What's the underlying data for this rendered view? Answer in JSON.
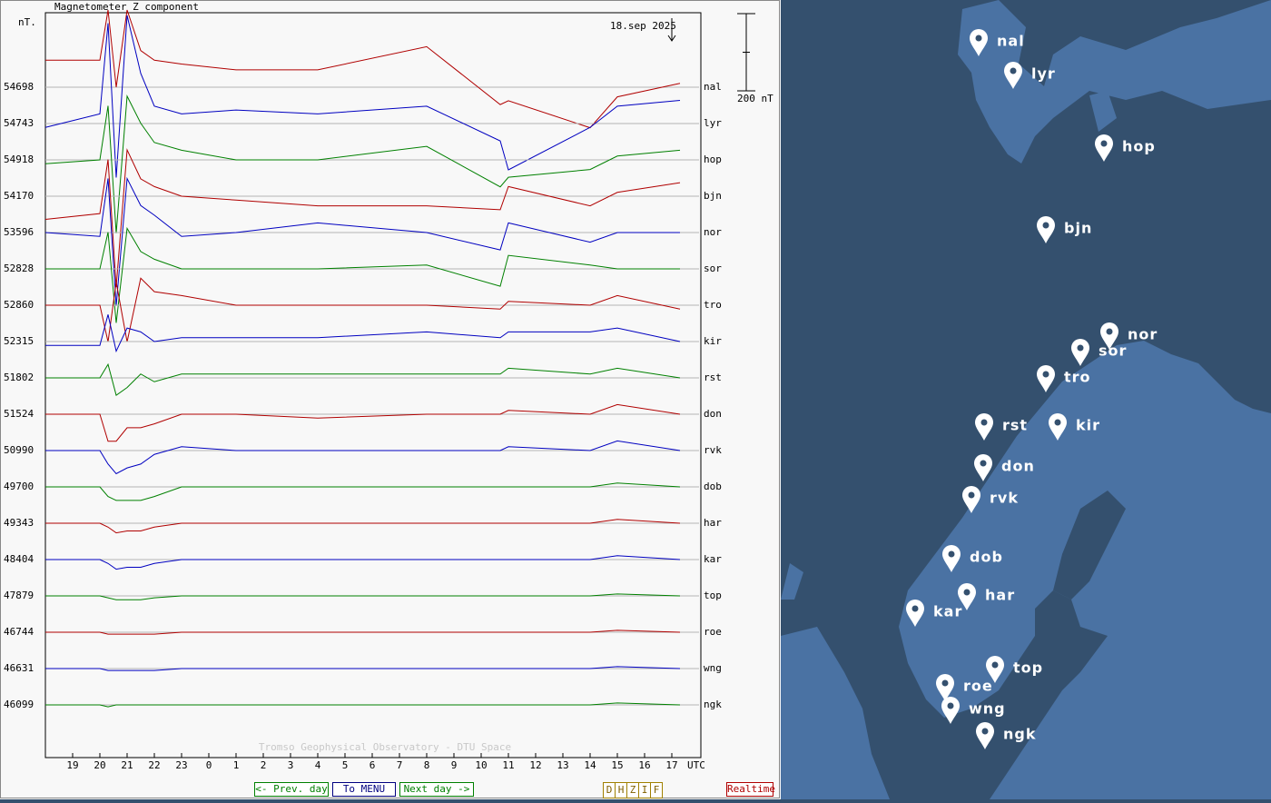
{
  "chart_data": {
    "type": "line",
    "title": "Magnetometer Z component",
    "y_unit": "nT.",
    "date": "18.sep 2025",
    "footer": "Tromso Geophysical Observatory - DTU Space",
    "xlabel": "UTC",
    "scale_bar": {
      "value": 200,
      "label": "200 nT"
    },
    "xlim": [
      0,
      24
    ],
    "xticks": [
      {
        "value": 1,
        "label": "19"
      },
      {
        "value": 2,
        "label": "20"
      },
      {
        "value": 3,
        "label": "21"
      },
      {
        "value": 4,
        "label": "22"
      },
      {
        "value": 5,
        "label": "23"
      },
      {
        "value": 6,
        "label": "0"
      },
      {
        "value": 7,
        "label": "1"
      },
      {
        "value": 8,
        "label": "2"
      },
      {
        "value": 9,
        "label": "3"
      },
      {
        "value": 10,
        "label": "4"
      },
      {
        "value": 11,
        "label": "5"
      },
      {
        "value": 12,
        "label": "6"
      },
      {
        "value": 13,
        "label": "7"
      },
      {
        "value": 14,
        "label": "8"
      },
      {
        "value": 15,
        "label": "9"
      },
      {
        "value": 16,
        "label": "10"
      },
      {
        "value": 17,
        "label": "11"
      },
      {
        "value": 18,
        "label": "12"
      },
      {
        "value": 19,
        "label": "13"
      },
      {
        "value": 20,
        "label": "14"
      },
      {
        "value": 21,
        "label": "15"
      },
      {
        "value": 22,
        "label": "16"
      },
      {
        "value": 23,
        "label": "17"
      }
    ],
    "x": [
      0,
      2,
      2.3,
      2.6,
      3,
      3.5,
      4,
      5,
      7,
      10,
      14,
      16.7,
      17,
      20,
      21,
      23.3
    ],
    "series": [
      {
        "name": "nal",
        "baseline": 54698,
        "color": "#b00000",
        "values": [
          70,
          70,
          200,
          0,
          200,
          95,
          70,
          60,
          45,
          45,
          105,
          -45,
          -35,
          -105,
          -25,
          10
        ]
      },
      {
        "name": "lyr",
        "baseline": 54743,
        "color": "#0000c0",
        "values": [
          -10,
          25,
          260,
          -140,
          280,
          130,
          45,
          25,
          35,
          25,
          45,
          -45,
          -120,
          -10,
          45,
          60
        ]
      },
      {
        "name": "hop",
        "baseline": 54918,
        "color": "#008000",
        "values": [
          -10,
          0,
          140,
          -190,
          165,
          95,
          45,
          25,
          0,
          0,
          35,
          -70,
          -45,
          -25,
          10,
          25
        ]
      },
      {
        "name": "bjn",
        "baseline": 54170,
        "color": "#b00000",
        "values": [
          -60,
          -45,
          95,
          -235,
          120,
          45,
          25,
          0,
          -10,
          -25,
          -25,
          -35,
          25,
          -25,
          10,
          35
        ]
      },
      {
        "name": "nor",
        "baseline": 53596,
        "color": "#0000c0",
        "values": [
          0,
          -10,
          140,
          -190,
          140,
          70,
          45,
          -10,
          0,
          25,
          0,
          -45,
          25,
          -25,
          0,
          0
        ]
      },
      {
        "name": "sor",
        "baseline": 52828,
        "color": "#008000",
        "values": [
          0,
          0,
          95,
          -140,
          105,
          45,
          25,
          0,
          0,
          0,
          10,
          -45,
          35,
          10,
          0,
          0
        ]
      },
      {
        "name": "tro",
        "baseline": 52860,
        "color": "#b00000",
        "values": [
          0,
          0,
          -95,
          60,
          -95,
          70,
          35,
          25,
          0,
          0,
          0,
          -10,
          10,
          0,
          25,
          -10
        ]
      },
      {
        "name": "kir",
        "baseline": 52315,
        "color": "#0000c0",
        "values": [
          -10,
          -10,
          70,
          -25,
          35,
          25,
          0,
          10,
          10,
          10,
          25,
          10,
          25,
          25,
          35,
          0
        ]
      },
      {
        "name": "rst",
        "baseline": 51802,
        "color": "#008000",
        "values": [
          0,
          0,
          35,
          -45,
          -25,
          10,
          -10,
          10,
          10,
          10,
          10,
          10,
          25,
          10,
          25,
          0
        ]
      },
      {
        "name": "don",
        "baseline": 51524,
        "color": "#b00000",
        "values": [
          0,
          0,
          -70,
          -70,
          -35,
          -35,
          -25,
          0,
          0,
          -10,
          0,
          0,
          10,
          0,
          25,
          0
        ]
      },
      {
        "name": "rvk",
        "baseline": 50990,
        "color": "#0000c0",
        "values": [
          0,
          0,
          -35,
          -60,
          -45,
          -35,
          -10,
          10,
          0,
          0,
          0,
          0,
          10,
          0,
          25,
          0
        ]
      },
      {
        "name": "dob",
        "baseline": 49700,
        "color": "#008000",
        "values": [
          0,
          0,
          -25,
          -35,
          -35,
          -35,
          -25,
          0,
          0,
          0,
          0,
          0,
          0,
          0,
          10,
          0
        ]
      },
      {
        "name": "har",
        "baseline": 49343,
        "color": "#b00000",
        "values": [
          0,
          0,
          -10,
          -25,
          -20,
          -20,
          -10,
          0,
          0,
          0,
          0,
          0,
          0,
          0,
          10,
          0
        ]
      },
      {
        "name": "kar",
        "baseline": 48404,
        "color": "#0000c0",
        "values": [
          0,
          0,
          -10,
          -25,
          -20,
          -20,
          -10,
          0,
          0,
          0,
          0,
          0,
          0,
          0,
          10,
          0
        ]
      },
      {
        "name": "top",
        "baseline": 47879,
        "color": "#008000",
        "values": [
          0,
          0,
          -5,
          -10,
          -10,
          -10,
          -5,
          0,
          0,
          0,
          0,
          0,
          0,
          0,
          5,
          0
        ]
      },
      {
        "name": "roe",
        "baseline": 46744,
        "color": "#b00000",
        "values": [
          0,
          0,
          -5,
          -5,
          -5,
          -5,
          -5,
          0,
          0,
          0,
          0,
          0,
          0,
          0,
          5,
          0
        ]
      },
      {
        "name": "wng",
        "baseline": 46631,
        "color": "#0000c0",
        "values": [
          0,
          0,
          -5,
          -5,
          -5,
          -5,
          -5,
          0,
          0,
          0,
          0,
          0,
          0,
          0,
          5,
          0
        ]
      },
      {
        "name": "ngk",
        "baseline": 46099,
        "color": "#008000",
        "values": [
          0,
          0,
          -5,
          0,
          0,
          0,
          0,
          0,
          0,
          0,
          0,
          0,
          0,
          0,
          5,
          0
        ]
      }
    ]
  },
  "nav": {
    "prev": "<- Prev. day",
    "menu": "To MENU",
    "next": "Next day ->",
    "components": [
      "D",
      "H",
      "Z",
      "I",
      "F"
    ],
    "realtime": "Realtime"
  },
  "map": {
    "stations": [
      "nal",
      "lyr",
      "hop",
      "bjn",
      "nor",
      "sor",
      "tro",
      "rst",
      "kir",
      "don",
      "rvk",
      "dob",
      "har",
      "kar",
      "top",
      "roe",
      "wng",
      "ngk"
    ]
  }
}
